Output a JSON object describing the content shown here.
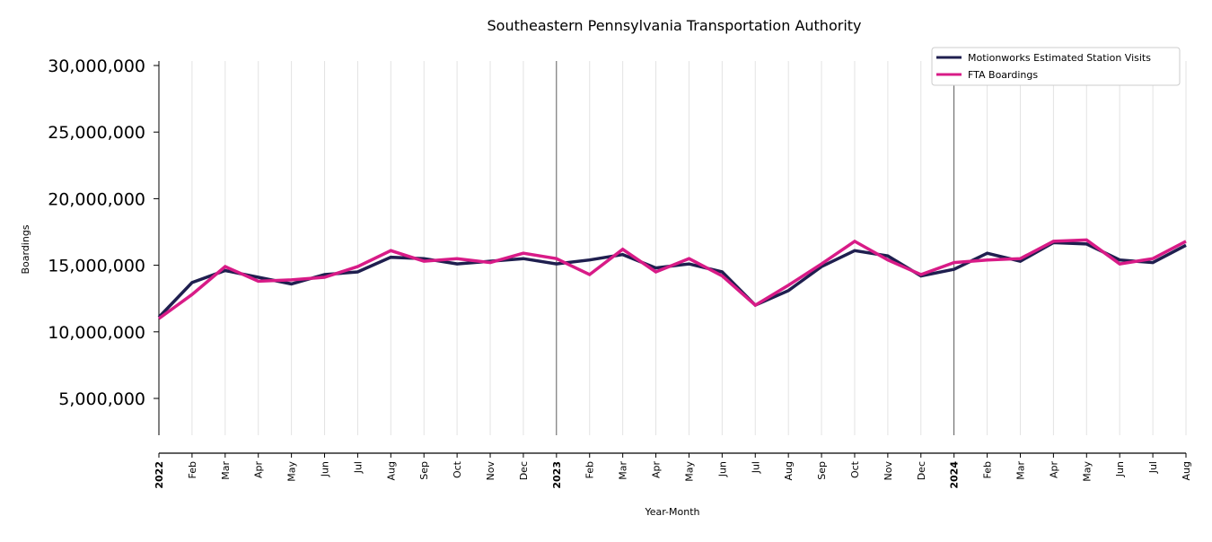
{
  "chart_data": {
    "type": "line",
    "title": "Southeastern Pennsylvania Transportation Authority",
    "xlabel": "Year-Month",
    "ylabel": "Boardings",
    "ylim": [
      2200000,
      30300000
    ],
    "yticks": [
      5000000,
      10000000,
      15000000,
      20000000,
      25000000,
      30000000
    ],
    "ytick_labels": [
      "5,000,000",
      "10,000,000",
      "15,000,000",
      "20,000,000",
      "25,000,000",
      "30,000,000"
    ],
    "x": [
      "2022",
      "Feb",
      "Mar",
      "Apr",
      "May",
      "Jun",
      "Jul",
      "Aug",
      "Sep",
      "Oct",
      "Nov",
      "Dec",
      "2023",
      "Feb",
      "Mar",
      "Apr",
      "May",
      "Jun",
      "Jul",
      "Aug",
      "Sep",
      "Oct",
      "Nov",
      "Dec",
      "2024",
      "Feb",
      "Mar",
      "Apr",
      "May",
      "Jun",
      "Jul",
      "Aug"
    ],
    "year_markers": [
      "2022",
      "2023",
      "2024"
    ],
    "grid": "vertical",
    "legend_position": "top-right",
    "series": [
      {
        "name": "Motionworks Estimated Station Visits",
        "color": "#1f1f4f",
        "values": [
          11100000,
          13700000,
          14600000,
          14100000,
          13600000,
          14300000,
          14500000,
          15600000,
          15500000,
          15100000,
          15300000,
          15500000,
          15100000,
          15400000,
          15800000,
          14800000,
          15100000,
          14500000,
          12000000,
          13100000,
          14900000,
          16100000,
          15700000,
          14200000,
          14700000,
          15900000,
          15300000,
          16700000,
          16600000,
          15400000,
          15200000,
          16500000
        ]
      },
      {
        "name": "FTA Boardings",
        "color": "#d81b87",
        "values": [
          11000000,
          12800000,
          14900000,
          13800000,
          13900000,
          14100000,
          14900000,
          16100000,
          15300000,
          15500000,
          15200000,
          15900000,
          15500000,
          14300000,
          16200000,
          14500000,
          15500000,
          14200000,
          12000000,
          13500000,
          15100000,
          16800000,
          15400000,
          14300000,
          15200000,
          15400000,
          15500000,
          16800000,
          16900000,
          15100000,
          15500000,
          16800000
        ]
      }
    ]
  }
}
